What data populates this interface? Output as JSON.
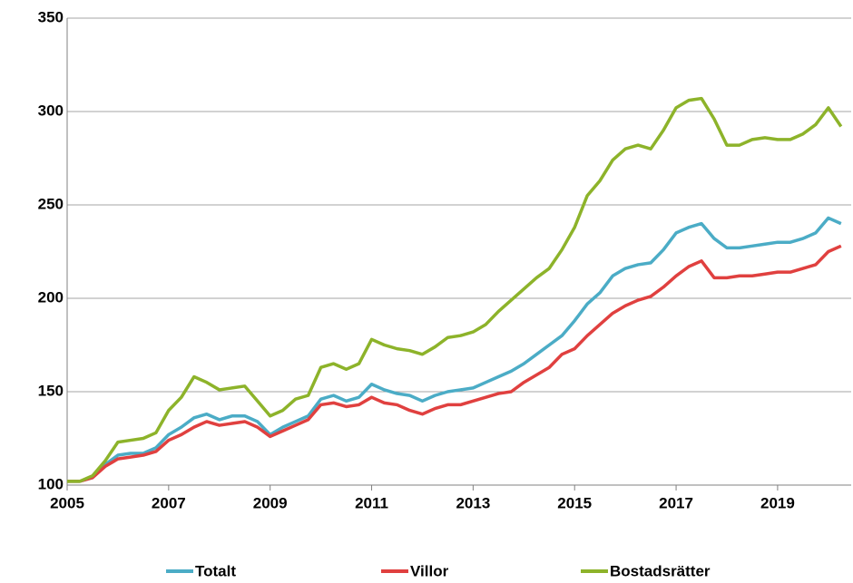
{
  "chart_data": {
    "type": "line",
    "x": [
      2005,
      2005.25,
      2005.5,
      2005.75,
      2006,
      2006.25,
      2006.5,
      2006.75,
      2007,
      2007.25,
      2007.5,
      2007.75,
      2008,
      2008.25,
      2008.5,
      2008.75,
      2009,
      2009.25,
      2009.5,
      2009.75,
      2010,
      2010.25,
      2010.5,
      2010.75,
      2011,
      2011.25,
      2011.5,
      2011.75,
      2012,
      2012.25,
      2012.5,
      2012.75,
      2013,
      2013.25,
      2013.5,
      2013.75,
      2014,
      2014.25,
      2014.5,
      2014.75,
      2015,
      2015.25,
      2015.5,
      2015.75,
      2016,
      2016.25,
      2016.5,
      2016.75,
      2017,
      2017.25,
      2017.5,
      2017.75,
      2018,
      2018.25,
      2018.5,
      2018.75,
      2019,
      2019.25,
      2019.5,
      2019.75,
      2020,
      2020.25
    ],
    "series": [
      {
        "name": "Totalt",
        "color": "#4bacc6",
        "values": [
          102,
          102,
          104,
          111,
          116,
          117,
          117,
          120,
          127,
          131,
          136,
          138,
          135,
          137,
          137,
          134,
          127,
          131,
          134,
          137,
          146,
          148,
          145,
          147,
          154,
          151,
          149,
          148,
          145,
          148,
          150,
          151,
          152,
          155,
          158,
          161,
          165,
          170,
          175,
          180,
          188,
          197,
          203,
          212,
          216,
          218,
          219,
          226,
          235,
          238,
          240,
          232,
          227,
          227,
          228,
          229,
          230,
          230,
          232,
          235,
          243,
          240
        ]
      },
      {
        "name": "Villor",
        "color": "#e0403f",
        "values": [
          102,
          102,
          104,
          110,
          114,
          115,
          116,
          118,
          124,
          127,
          131,
          134,
          132,
          133,
          134,
          131,
          126,
          129,
          132,
          135,
          143,
          144,
          142,
          143,
          147,
          144,
          143,
          140,
          138,
          141,
          143,
          143,
          145,
          147,
          149,
          150,
          155,
          159,
          163,
          170,
          173,
          180,
          186,
          192,
          196,
          199,
          201,
          206,
          212,
          217,
          220,
          211,
          211,
          212,
          212,
          213,
          214,
          214,
          216,
          218,
          225,
          228
        ]
      },
      {
        "name": "Bostadsrätter",
        "color": "#8db32a",
        "values": [
          102,
          102,
          105,
          113,
          123,
          124,
          125,
          128,
          140,
          147,
          158,
          155,
          151,
          152,
          153,
          145,
          137,
          140,
          146,
          148,
          163,
          165,
          162,
          165,
          178,
          175,
          173,
          172,
          170,
          174,
          179,
          180,
          182,
          186,
          193,
          199,
          205,
          211,
          216,
          226,
          238,
          255,
          263,
          274,
          280,
          282,
          280,
          290,
          302,
          306,
          307,
          296,
          282,
          282,
          285,
          286,
          285,
          285,
          288,
          293,
          302,
          292
        ]
      }
    ],
    "xlim": [
      2005,
      2020.45
    ],
    "xticks": [
      2005,
      2007,
      2009,
      2011,
      2013,
      2015,
      2017,
      2019
    ],
    "ylim": [
      100,
      350
    ],
    "yticks": [
      100,
      150,
      200,
      250,
      300,
      350
    ],
    "grid": true
  }
}
